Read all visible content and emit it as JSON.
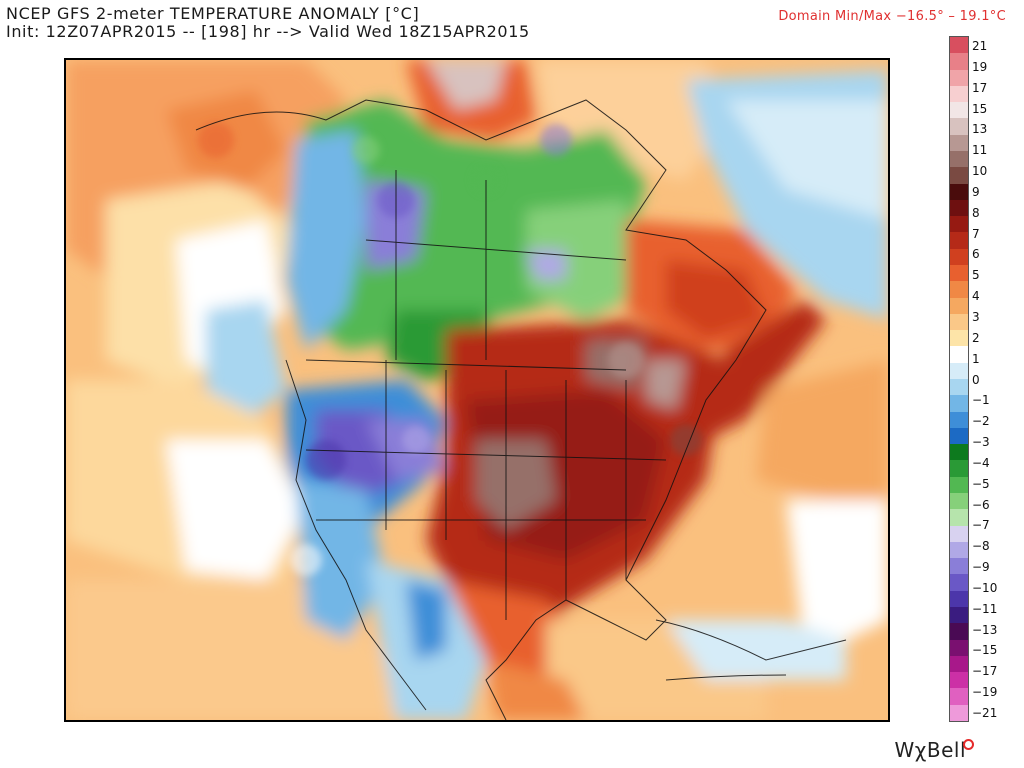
{
  "header": {
    "title": "NCEP GFS 2-meter TEMPERATURE ANOMALY [°C]",
    "subtitle": "Init: 12Z07APR2015 -- [198] hr --> Valid Wed 18Z15APR2015",
    "domain_minmax": "Domain Min/Max −16.5° –  19.1°C"
  },
  "colorbar": {
    "labels": [
      "21",
      "19",
      "17",
      "15",
      "13",
      "11",
      "10",
      "9",
      "8",
      "7",
      "6",
      "5",
      "4",
      "3",
      "2",
      "1",
      "0",
      "−1",
      "−2",
      "−3",
      "−4",
      "−5",
      "−6",
      "−7",
      "−8",
      "−9",
      "−10",
      "−11",
      "−13",
      "−15",
      "−17",
      "−19",
      "−21"
    ],
    "colors": [
      "#d84f5f",
      "#e88088",
      "#f0a4a8",
      "#f7cfd0",
      "#f2e6e6",
      "#d8c2bf",
      "#b79893",
      "#967069",
      "#7a4a42",
      "#4a0c0c",
      "#6e1010",
      "#961a12",
      "#b52a18",
      "#d0401f",
      "#e8602f",
      "#f08845",
      "#f5a860",
      "#fac888",
      "#fde4a8",
      "#ffffff",
      "#d6ecf8",
      "#a8d6f0",
      "#72b6e6",
      "#3e8ed8",
      "#1c6ac4",
      "#0d7a1e",
      "#2a9a36",
      "#52b852",
      "#86d07a",
      "#b6e4ac",
      "#d8d2f0",
      "#b0a8e6",
      "#8a7ed8",
      "#6a58c6",
      "#4c36aa",
      "#3a1c80",
      "#4a0a54",
      "#7a1070",
      "#a8188a",
      "#cc30a6",
      "#e060c0",
      "#ee9ada"
    ]
  },
  "brand": "WχBell"
}
